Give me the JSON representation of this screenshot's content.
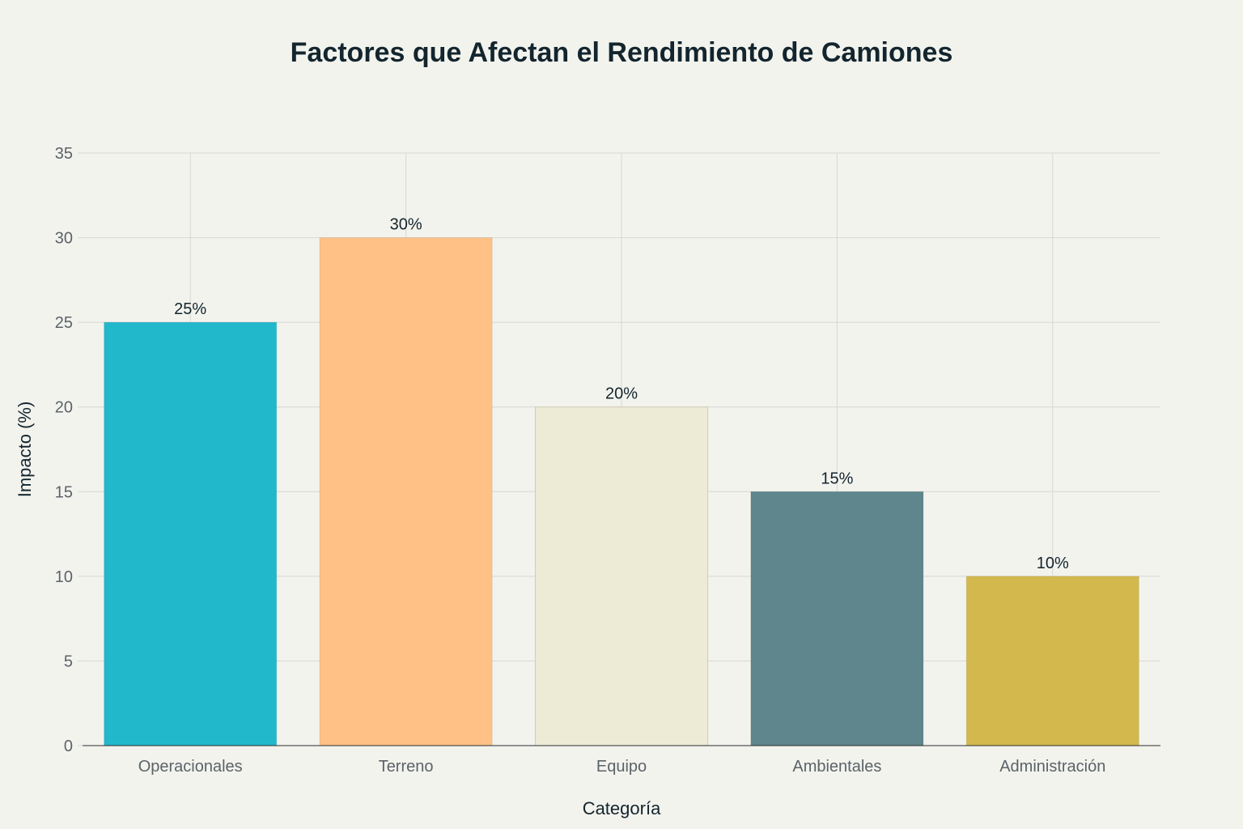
{
  "chart_data": {
    "type": "bar",
    "title": "Factores que Afectan el Rendimiento de Camiones",
    "xlabel": "Categoría",
    "ylabel": "Impacto (%)",
    "categories": [
      "Operacionales",
      "Terreno",
      "Equipo",
      "Ambientales",
      "Administración"
    ],
    "values": [
      25,
      30,
      20,
      15,
      10
    ],
    "data_labels": [
      "25%",
      "30%",
      "20%",
      "15%",
      "10%"
    ],
    "colors": [
      "#21b8cc",
      "#ffc186",
      "#edebd6",
      "#5e868c",
      "#d3b94d"
    ],
    "ylim": [
      0,
      35
    ],
    "yticks": [
      0,
      5,
      10,
      15,
      20,
      25,
      30,
      35
    ],
    "grid": true,
    "legend": "none"
  }
}
